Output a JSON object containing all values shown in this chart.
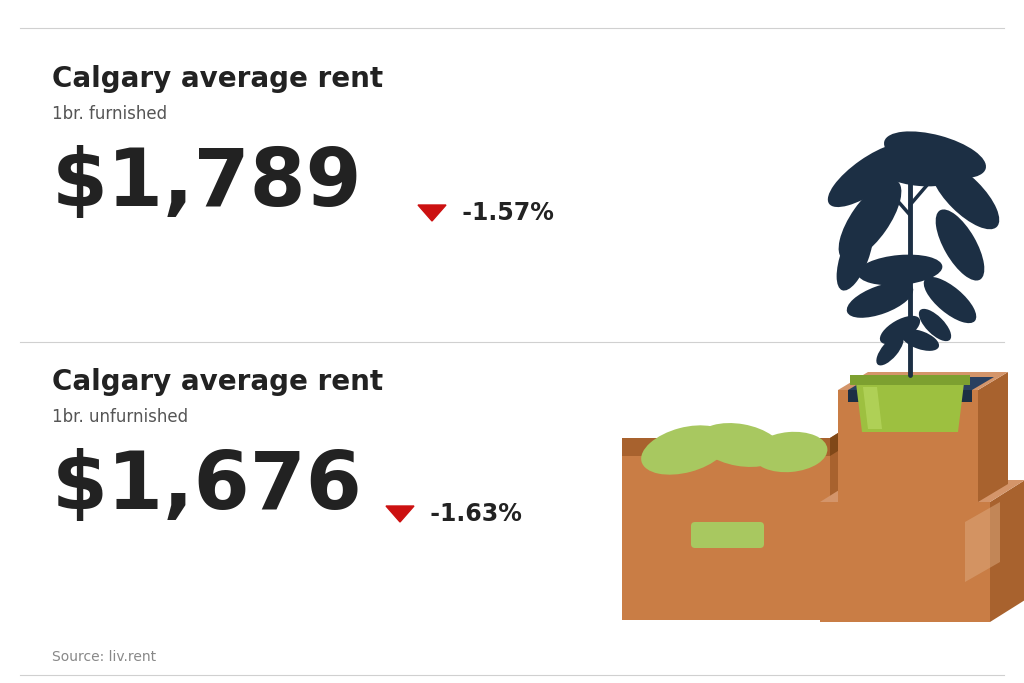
{
  "background_color": "#ffffff",
  "divider_color": "#d0d0d0",
  "title1": "Calgary average rent",
  "subtitle1": "1br. furnished",
  "price1": "$1,789",
  "change1": " -1.57%",
  "title2": "Calgary average rent",
  "subtitle2": "1br. unfurnished",
  "price2": "$1,676",
  "change2": " -1.63%",
  "title_color": "#222222",
  "subtitle_color": "#555555",
  "price_color": "#222222",
  "arrow_color": "#cc1111",
  "change_color": "#222222",
  "source_text": "Source: liv.rent",
  "source_color": "#888888",
  "title_fontsize": 20,
  "subtitle_fontsize": 12,
  "price_fontsize": 58,
  "change_fontsize": 17,
  "source_fontsize": 10,
  "box_front": "#C97D45",
  "box_side": "#A8622E",
  "box_top": "#D4956A",
  "box_highlight": "#DDAA80",
  "plant_navy": "#1C2F44",
  "pot_green": "#9DC040",
  "pot_dark_green": "#7DA030",
  "pot_highlight": "#B8D860",
  "leaf_green": "#A8C860",
  "book_navy": "#1C2F44",
  "book_light": "#2A4060"
}
